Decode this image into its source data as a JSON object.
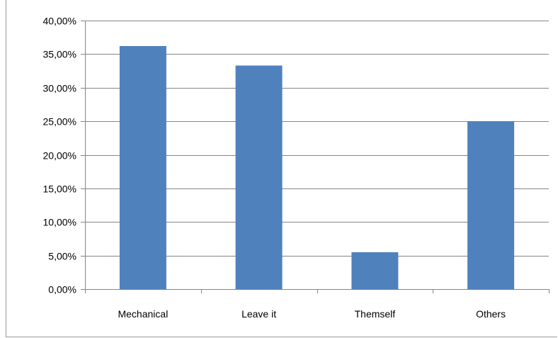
{
  "chart_data": {
    "type": "bar",
    "categories": [
      "Mechanical",
      "Leave it",
      "Themself",
      "Others"
    ],
    "values": [
      36.2,
      33.3,
      5.5,
      25.0
    ],
    "y_ticks": [
      "0,00%",
      "5,00%",
      "10,00%",
      "15,00%",
      "20,00%",
      "25,00%",
      "30,00%",
      "35,00%",
      "40,00%"
    ],
    "ylim": [
      0,
      40
    ],
    "grid": true,
    "legend": "none",
    "title": "",
    "xlabel": "",
    "ylabel": "",
    "colors": {
      "bar": "#4F81BD",
      "gridline": "#868686",
      "axis": "#868686"
    }
  }
}
